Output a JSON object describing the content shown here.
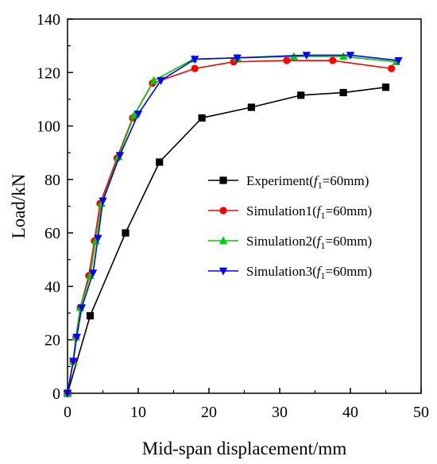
{
  "chart_data": {
    "type": "line",
    "xlabel": "Mid-span displacement/mm",
    "ylabel": "Load/kN",
    "xlim": [
      0,
      50
    ],
    "ylim": [
      0,
      140
    ],
    "x_ticks": [
      0,
      10,
      20,
      30,
      40,
      50
    ],
    "y_ticks": [
      0,
      20,
      40,
      60,
      80,
      100,
      120,
      140
    ],
    "grid": false,
    "legend_position": "center-right",
    "series": [
      {
        "name": "Experiment(f1=60mm)",
        "legend": {
          "prefix": "Experiment(",
          "var": "f",
          "sub": "1",
          "suffix": "=60mm)"
        },
        "color": "#000000",
        "marker": "square",
        "points": [
          [
            0,
            0
          ],
          [
            3.2,
            29
          ],
          [
            8.2,
            60
          ],
          [
            13,
            86.5
          ],
          [
            19,
            103
          ],
          [
            26,
            107
          ],
          [
            33,
            111.5
          ],
          [
            39,
            112.5
          ],
          [
            45,
            114.5
          ]
        ]
      },
      {
        "name": "Simulation1(f1=60mm)",
        "legend": {
          "prefix": "Simulation1(",
          "var": "f",
          "sub": "1",
          "suffix": "=60mm)"
        },
        "color": "#ff0000",
        "marker": "circle",
        "points": [
          [
            0,
            0
          ],
          [
            0.8,
            12
          ],
          [
            1.2,
            21
          ],
          [
            1.8,
            32
          ],
          [
            3.0,
            44
          ],
          [
            3.8,
            57
          ],
          [
            4.6,
            71
          ],
          [
            7.0,
            88
          ],
          [
            9.2,
            103
          ],
          [
            12.0,
            116
          ],
          [
            18.0,
            121.5
          ],
          [
            23.5,
            124
          ],
          [
            31.0,
            124.5
          ],
          [
            37.5,
            124.5
          ],
          [
            45.8,
            121.5
          ]
        ]
      },
      {
        "name": "Simulation2(f1=60mm)",
        "legend": {
          "prefix": "Simulation2(",
          "var": "f",
          "sub": "1",
          "suffix": "=60mm)"
        },
        "color": "#00cc00",
        "marker": "triangle-up",
        "points": [
          [
            0,
            0
          ],
          [
            0.8,
            12
          ],
          [
            1.2,
            21
          ],
          [
            1.8,
            32
          ],
          [
            3.2,
            44
          ],
          [
            4.0,
            57
          ],
          [
            4.8,
            71
          ],
          [
            7.2,
            88.5
          ],
          [
            9.4,
            104
          ],
          [
            12.2,
            117
          ],
          [
            17.8,
            125
          ],
          [
            24.0,
            125.5
          ],
          [
            32.0,
            126
          ],
          [
            39.0,
            126
          ],
          [
            46.5,
            124
          ]
        ]
      },
      {
        "name": "Simulation3(f1=60mm)",
        "legend": {
          "prefix": "Simulation3(",
          "var": "f",
          "sub": "1",
          "suffix": "=60mm)"
        },
        "color": "#0000ff",
        "marker": "triangle-down",
        "points": [
          [
            0,
            0
          ],
          [
            0.8,
            12
          ],
          [
            1.3,
            21
          ],
          [
            2.0,
            32
          ],
          [
            3.6,
            45
          ],
          [
            4.3,
            58
          ],
          [
            5.0,
            72
          ],
          [
            7.4,
            89
          ],
          [
            10.0,
            104.5
          ],
          [
            13.2,
            117
          ],
          [
            18.0,
            125
          ],
          [
            24.0,
            125.5
          ],
          [
            33.8,
            126.5
          ],
          [
            40.0,
            126.5
          ],
          [
            46.8,
            124.5
          ]
        ]
      }
    ]
  }
}
